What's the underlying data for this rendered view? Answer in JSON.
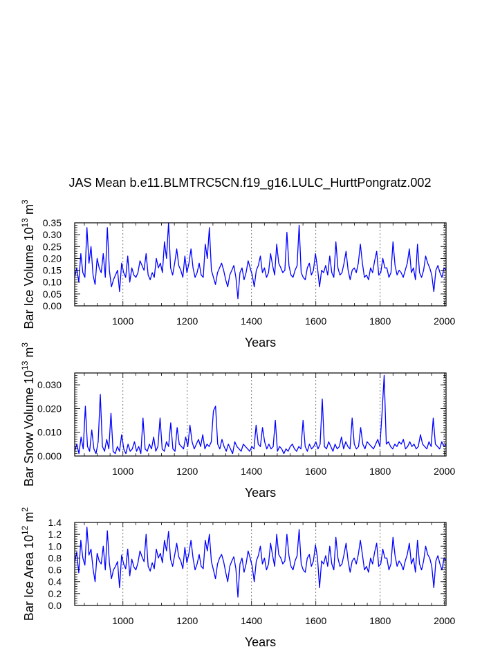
{
  "title": "JAS Mean b.e11.BLMTRC5CN.f19_g16.LULC_HurttPongratz.002",
  "line_color": "#0000ff",
  "chart_data": [
    {
      "type": "line",
      "xlabel": "Years",
      "ylabel_main": "Bar Ice Volume 10",
      "ylabel_exp": "13",
      "ylabel_unit": "m",
      "ylabel_unit_exp": "3",
      "xlim": [
        850,
        2005
      ],
      "ylim": [
        0,
        0.35
      ],
      "xticks": [
        1000,
        1200,
        1400,
        1600,
        1800,
        2000
      ],
      "xtick_labels": [
        "1000",
        "1200",
        "1400",
        "1600",
        "1800",
        "2000"
      ],
      "yticks": [
        0,
        0.05,
        0.1,
        0.15,
        0.2,
        0.25,
        0.3,
        0.35
      ],
      "ytick_labels": [
        "0.00",
        "0.05",
        "0.10",
        "0.15",
        "0.20",
        "0.25",
        "0.30",
        "0.35"
      ],
      "series": [
        {
          "name": "Bar Ice Volume",
          "x_start": 850,
          "x_end": 2005,
          "values": [
            0.12,
            0.16,
            0.1,
            0.22,
            0.14,
            0.12,
            0.33,
            0.18,
            0.25,
            0.13,
            0.09,
            0.2,
            0.16,
            0.14,
            0.22,
            0.12,
            0.33,
            0.15,
            0.08,
            0.11,
            0.13,
            0.15,
            0.06,
            0.18,
            0.14,
            0.12,
            0.21,
            0.1,
            0.16,
            0.13,
            0.12,
            0.14,
            0.19,
            0.17,
            0.15,
            0.22,
            0.13,
            0.11,
            0.14,
            0.12,
            0.2,
            0.16,
            0.18,
            0.14,
            0.27,
            0.2,
            0.35,
            0.16,
            0.13,
            0.18,
            0.24,
            0.17,
            0.15,
            0.12,
            0.21,
            0.14,
            0.18,
            0.24,
            0.16,
            0.12,
            0.14,
            0.18,
            0.13,
            0.12,
            0.26,
            0.2,
            0.33,
            0.15,
            0.12,
            0.09,
            0.14,
            0.16,
            0.18,
            0.15,
            0.11,
            0.08,
            0.13,
            0.15,
            0.17,
            0.12,
            0.03,
            0.14,
            0.16,
            0.11,
            0.14,
            0.19,
            0.16,
            0.13,
            0.08,
            0.15,
            0.17,
            0.21,
            0.14,
            0.16,
            0.12,
            0.14,
            0.22,
            0.17,
            0.13,
            0.26,
            0.18,
            0.16,
            0.14,
            0.15,
            0.31,
            0.17,
            0.13,
            0.12,
            0.15,
            0.17,
            0.34,
            0.14,
            0.12,
            0.11,
            0.16,
            0.18,
            0.13,
            0.15,
            0.22,
            0.16,
            0.08,
            0.15,
            0.14,
            0.17,
            0.13,
            0.21,
            0.14,
            0.12,
            0.27,
            0.16,
            0.13,
            0.14,
            0.18,
            0.23,
            0.15,
            0.11,
            0.15,
            0.16,
            0.14,
            0.18,
            0.26,
            0.18,
            0.12,
            0.13,
            0.11,
            0.16,
            0.14,
            0.19,
            0.23,
            0.13,
            0.14,
            0.2,
            0.16,
            0.16,
            0.12,
            0.14,
            0.27,
            0.17,
            0.13,
            0.15,
            0.14,
            0.12,
            0.15,
            0.18,
            0.24,
            0.14,
            0.16,
            0.11,
            0.26,
            0.14,
            0.12,
            0.15,
            0.21,
            0.18,
            0.16,
            0.13,
            0.06,
            0.15,
            0.17,
            0.14,
            0.12,
            0.16,
            0.15
          ]
        }
      ]
    },
    {
      "type": "line",
      "xlabel": "Years",
      "ylabel_main": "Bar Snow Volume 10",
      "ylabel_exp": "13",
      "ylabel_unit": "m",
      "ylabel_unit_exp": "3",
      "xlim": [
        850,
        2005
      ],
      "ylim": [
        0,
        0.035
      ],
      "xticks": [
        1000,
        1200,
        1400,
        1600,
        1800,
        2000
      ],
      "xtick_labels": [
        "1000",
        "1200",
        "1400",
        "1600",
        "1800",
        "2000"
      ],
      "yticks": [
        0,
        0.01,
        0.02,
        0.03
      ],
      "ytick_labels": [
        "0.000",
        "0.010",
        "0.020",
        "0.030"
      ],
      "series": [
        {
          "name": "Bar Snow Volume",
          "x_start": 850,
          "x_end": 2005,
          "values": [
            0.002,
            0.005,
            0.001,
            0.008,
            0.003,
            0.021,
            0.004,
            0.002,
            0.011,
            0.003,
            0.001,
            0.006,
            0.026,
            0.004,
            0.002,
            0.007,
            0.003,
            0.018,
            0.002,
            0.001,
            0.004,
            0.002,
            0.009,
            0.003,
            0.001,
            0.005,
            0.002,
            0.003,
            0.006,
            0.002,
            0.004,
            0.001,
            0.016,
            0.003,
            0.002,
            0.005,
            0.003,
            0.008,
            0.002,
            0.004,
            0.016,
            0.003,
            0.002,
            0.006,
            0.004,
            0.014,
            0.003,
            0.002,
            0.012,
            0.005,
            0.004,
            0.003,
            0.008,
            0.004,
            0.013,
            0.006,
            0.003,
            0.005,
            0.007,
            0.004,
            0.009,
            0.003,
            0.005,
            0.004,
            0.006,
            0.019,
            0.021,
            0.005,
            0.003,
            0.007,
            0.004,
            0.002,
            0.005,
            0.003,
            0.001,
            0.006,
            0.004,
            0.003,
            0.002,
            0.005,
            0.004,
            0.003,
            0.002,
            0.004,
            0.003,
            0.013,
            0.005,
            0.004,
            0.012,
            0.006,
            0.003,
            0.005,
            0.003,
            0.004,
            0.015,
            0.002,
            0.004,
            0.003,
            0.001,
            0.003,
            0.002,
            0.004,
            0.005,
            0.003,
            0.002,
            0.004,
            0.003,
            0.015,
            0.004,
            0.002,
            0.005,
            0.003,
            0.004,
            0.006,
            0.003,
            0.005,
            0.024,
            0.004,
            0.003,
            0.006,
            0.004,
            0.002,
            0.005,
            0.003,
            0.004,
            0.008,
            0.003,
            0.006,
            0.004,
            0.003,
            0.016,
            0.005,
            0.003,
            0.004,
            0.012,
            0.005,
            0.003,
            0.006,
            0.005,
            0.004,
            0.003,
            0.005,
            0.007,
            0.004,
            0.018,
            0.034,
            0.005,
            0.006,
            0.004,
            0.003,
            0.005,
            0.004,
            0.006,
            0.005,
            0.007,
            0.003,
            0.004,
            0.006,
            0.004,
            0.005,
            0.003,
            0.004,
            0.009,
            0.005,
            0.004,
            0.003,
            0.006,
            0.004,
            0.016,
            0.005,
            0.004,
            0.003,
            0.006,
            0.004,
            0.005
          ]
        }
      ]
    },
    {
      "type": "line",
      "xlabel": "Years",
      "ylabel_main": "Bar Ice Area 10",
      "ylabel_exp": "12",
      "ylabel_unit": "m",
      "ylabel_unit_exp": "2",
      "xlim": [
        850,
        2005
      ],
      "ylim": [
        0,
        1.4
      ],
      "xticks": [
        1000,
        1200,
        1400,
        1600,
        1800,
        2000
      ],
      "xtick_labels": [
        "1000",
        "1200",
        "1400",
        "1600",
        "1800",
        "2000"
      ],
      "yticks": [
        0,
        0.2,
        0.4,
        0.6,
        0.8,
        1.0,
        1.2,
        1.4
      ],
      "ytick_labels": [
        "0.0",
        "0.2",
        "0.4",
        "0.6",
        "0.8",
        "1.0",
        "1.2",
        "1.4"
      ],
      "series": [
        {
          "name": "Bar Ice Area",
          "x_start": 850,
          "x_end": 2005,
          "values": [
            0.72,
            0.9,
            0.55,
            1.1,
            0.8,
            0.68,
            1.32,
            0.85,
            0.95,
            0.62,
            0.4,
            0.88,
            0.75,
            0.7,
            1.0,
            0.6,
            1.26,
            0.72,
            0.45,
            0.6,
            0.66,
            0.74,
            0.3,
            0.85,
            0.7,
            0.62,
            0.95,
            0.5,
            0.78,
            0.65,
            0.6,
            0.72,
            0.92,
            0.82,
            0.74,
            1.2,
            0.66,
            0.58,
            0.72,
            0.62,
            0.95,
            0.8,
            0.88,
            0.72,
            1.1,
            0.92,
            1.25,
            0.78,
            0.66,
            0.85,
            1.05,
            0.82,
            0.75,
            0.62,
            0.98,
            0.72,
            0.88,
            1.1,
            0.8,
            0.6,
            0.7,
            0.86,
            0.66,
            0.62,
            1.1,
            0.92,
            1.2,
            0.74,
            0.6,
            0.45,
            0.7,
            0.8,
            0.86,
            0.74,
            0.56,
            0.4,
            0.66,
            0.75,
            0.82,
            0.62,
            0.14,
            0.7,
            0.8,
            0.56,
            0.7,
            0.92,
            0.8,
            0.66,
            0.4,
            0.75,
            0.84,
            1.0,
            0.7,
            0.8,
            0.6,
            0.7,
            1.05,
            0.84,
            0.66,
            1.2,
            0.86,
            0.8,
            0.7,
            0.75,
            1.2,
            0.84,
            0.66,
            0.6,
            0.75,
            0.84,
            1.28,
            0.7,
            0.6,
            0.56,
            0.8,
            0.86,
            0.66,
            0.75,
            1.02,
            0.8,
            0.3,
            0.75,
            0.7,
            0.84,
            0.66,
            1.0,
            0.7,
            0.6,
            1.15,
            0.8,
            0.66,
            0.7,
            0.86,
            1.05,
            0.75,
            0.56,
            0.75,
            0.8,
            0.7,
            0.86,
            1.1,
            0.86,
            0.6,
            0.66,
            0.56,
            0.8,
            0.7,
            0.9,
            1.05,
            0.66,
            0.7,
            0.95,
            0.8,
            0.8,
            0.6,
            0.7,
            1.15,
            0.84,
            0.66,
            0.75,
            0.7,
            0.6,
            0.75,
            0.86,
            1.05,
            0.7,
            0.8,
            0.56,
            1.1,
            0.7,
            0.6,
            0.75,
            1.0,
            0.86,
            0.8,
            0.66,
            0.3,
            0.75,
            0.84,
            0.7,
            0.6,
            0.8,
            0.75
          ]
        }
      ]
    }
  ]
}
